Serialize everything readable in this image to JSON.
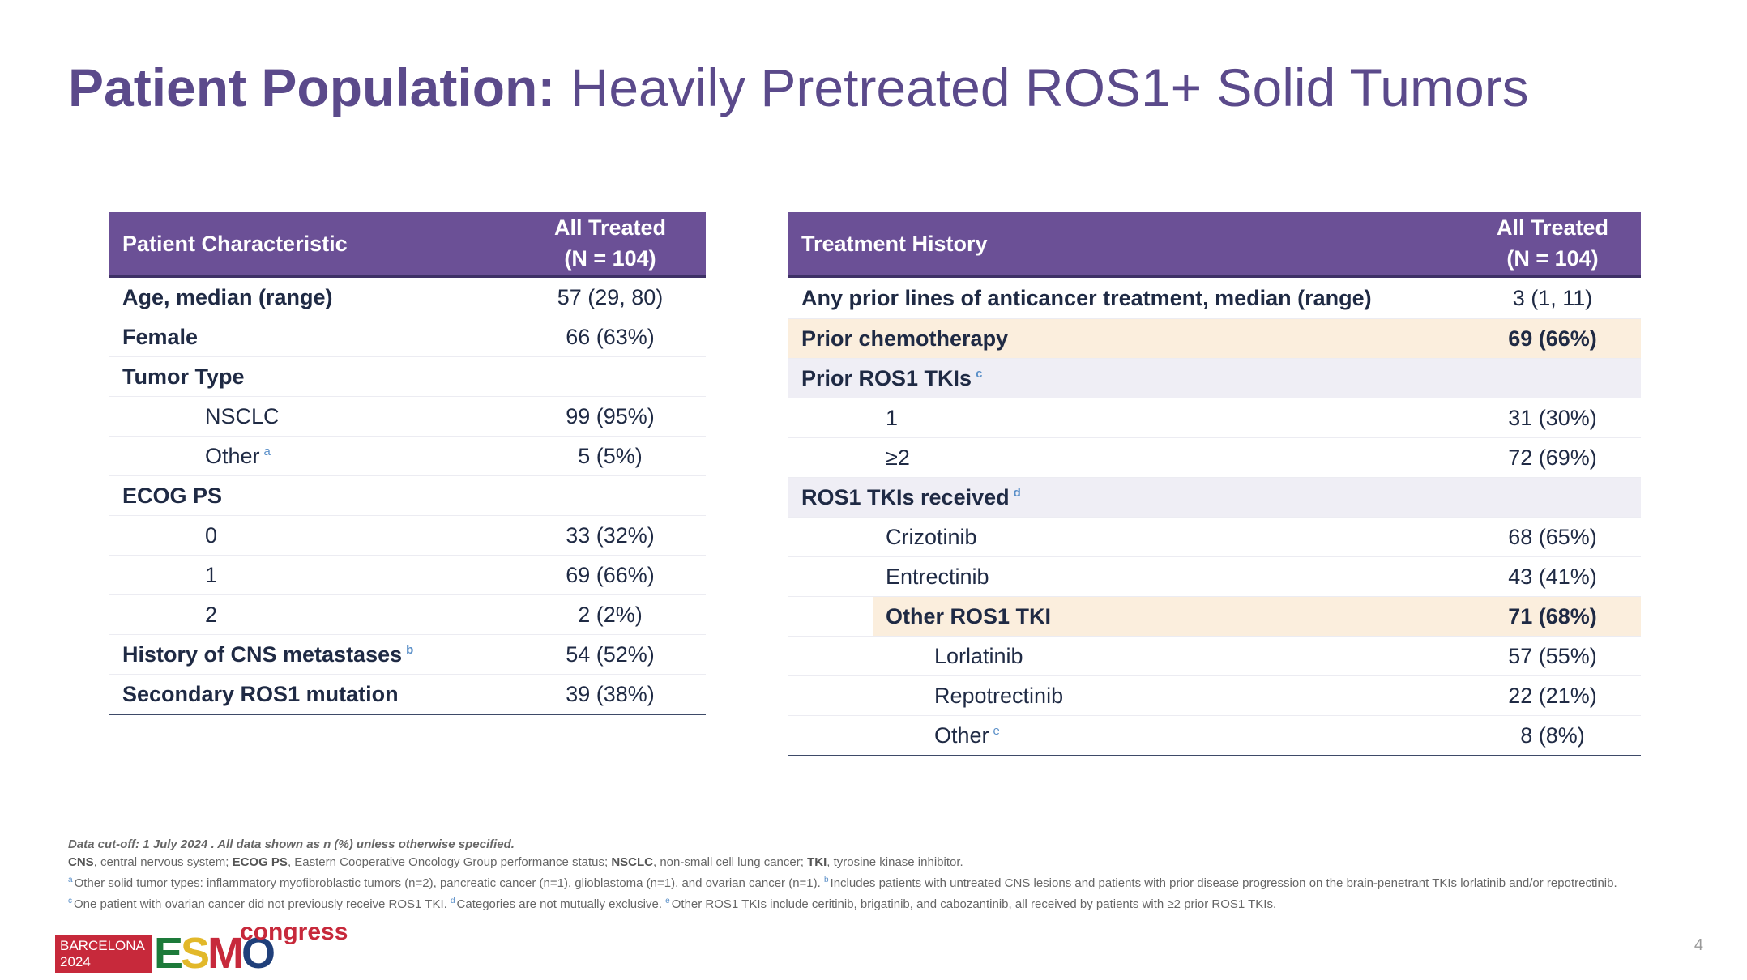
{
  "title": {
    "bold": "Patient Population:",
    "rest": "Heavily Pretreated ROS1+ Solid Tumors"
  },
  "left_table": {
    "header": {
      "col1": "Patient Characteristic",
      "col2_line1": "All Treated",
      "col2_line2": "(N = 104)"
    },
    "rows": [
      {
        "label": "Age, median (range)",
        "value": "57 (29, 80)"
      },
      {
        "label": "Female",
        "value": "66 (63%)"
      },
      {
        "label": "Tumor Type",
        "value": ""
      },
      {
        "label": "NSCLC",
        "value": "99 (95%)"
      },
      {
        "label": "Other",
        "sup": "a",
        "value": "5 (5%)"
      },
      {
        "label": "ECOG PS",
        "value": ""
      },
      {
        "label": "0",
        "value": "33 (32%)"
      },
      {
        "label": "1",
        "value": "69 (66%)"
      },
      {
        "label": "2",
        "value": "2 (2%)"
      },
      {
        "label": "History of CNS metastases",
        "sup": "b",
        "value": "54 (52%)"
      },
      {
        "label": "Secondary ROS1 mutation",
        "value": "39 (38%)"
      }
    ]
  },
  "right_table": {
    "header": {
      "col1": "Treatment History",
      "col2_line1": "All Treated",
      "col2_line2": "(N = 104)"
    },
    "rows": [
      {
        "label": "Any prior lines of anticancer treatment, median (range)",
        "value": "3 (1, 11)"
      },
      {
        "label": "Prior chemotherapy",
        "value": "69 (66%)"
      },
      {
        "label": "Prior ROS1 TKIs",
        "sup": "c",
        "value": ""
      },
      {
        "label": "1",
        "value": "31 (30%)"
      },
      {
        "label": "≥2",
        "value": "72 (69%)"
      },
      {
        "label": "ROS1 TKIs received",
        "sup": "d",
        "value": ""
      },
      {
        "label": "Crizotinib",
        "value": "68 (65%)"
      },
      {
        "label": "Entrectinib",
        "value": "43 (41%)"
      },
      {
        "label": "Other ROS1 TKI",
        "value": "71 (68%)"
      },
      {
        "label": "Lorlatinib",
        "value": "57 (55%)"
      },
      {
        "label": "Repotrectinib",
        "value": "22 (21%)"
      },
      {
        "label": "Other",
        "sup": "e",
        "value": "8 (8%)"
      }
    ]
  },
  "footnotes": {
    "line0": "Data cut-off: 1 July 2024 . All data shown as n (%) unless otherwise specified.",
    "abbr": [
      {
        "term": "CNS",
        "def": ", central nervous system; "
      },
      {
        "term": "ECOG PS",
        "def": ", Eastern Cooperative Oncology Group performance status; "
      },
      {
        "term": "NSCLC",
        "def": ", non-small cell lung cancer; "
      },
      {
        "term": "TKI",
        "def": ", tyrosine kinase inhibitor."
      }
    ],
    "a": "Other solid tumor types: inflammatory myofibroblastic tumors (n=2), pancreatic cancer (n=1), glioblastoma (n=1), and ovarian cancer (n=1).",
    "b": "Includes patients with untreated CNS lesions and patients with prior disease progression on the brain-penetrant TKIs lorlatinib and/or repotrectinib.",
    "c": "One patient with ovarian cancer did not previously receive ROS1 TKI.",
    "d": "Categories are not mutually exclusive.",
    "e": "Other ROS1 TKIs include ceritinib, brigatinib, and cabozantinib, all received by patients with ≥2 prior ROS1 TKIs."
  },
  "logo": {
    "line1": "BARCELONA",
    "line2": "2024",
    "esmo_e": "E",
    "esmo_s": "S",
    "esmo_m": "M",
    "esmo_o": "O",
    "congress": "congress"
  },
  "page_number": "4"
}
